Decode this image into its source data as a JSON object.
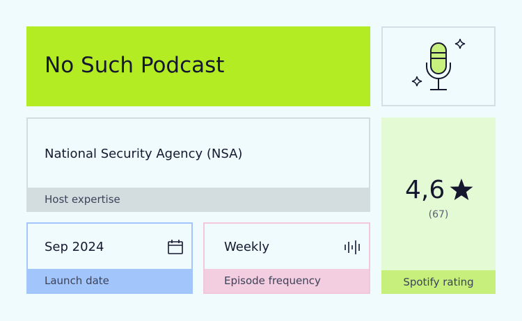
{
  "card": {
    "title": "No Such Podcast",
    "host": {
      "value": "National Security Agency (NSA)",
      "label": "Host expertise"
    },
    "launch": {
      "value": "Sep 2024",
      "label": "Launch date"
    },
    "frequency": {
      "value": "Weekly",
      "label": "Episode frequency"
    },
    "rating": {
      "value": "4,6",
      "count": "(67)",
      "label": "Spotify rating"
    }
  }
}
